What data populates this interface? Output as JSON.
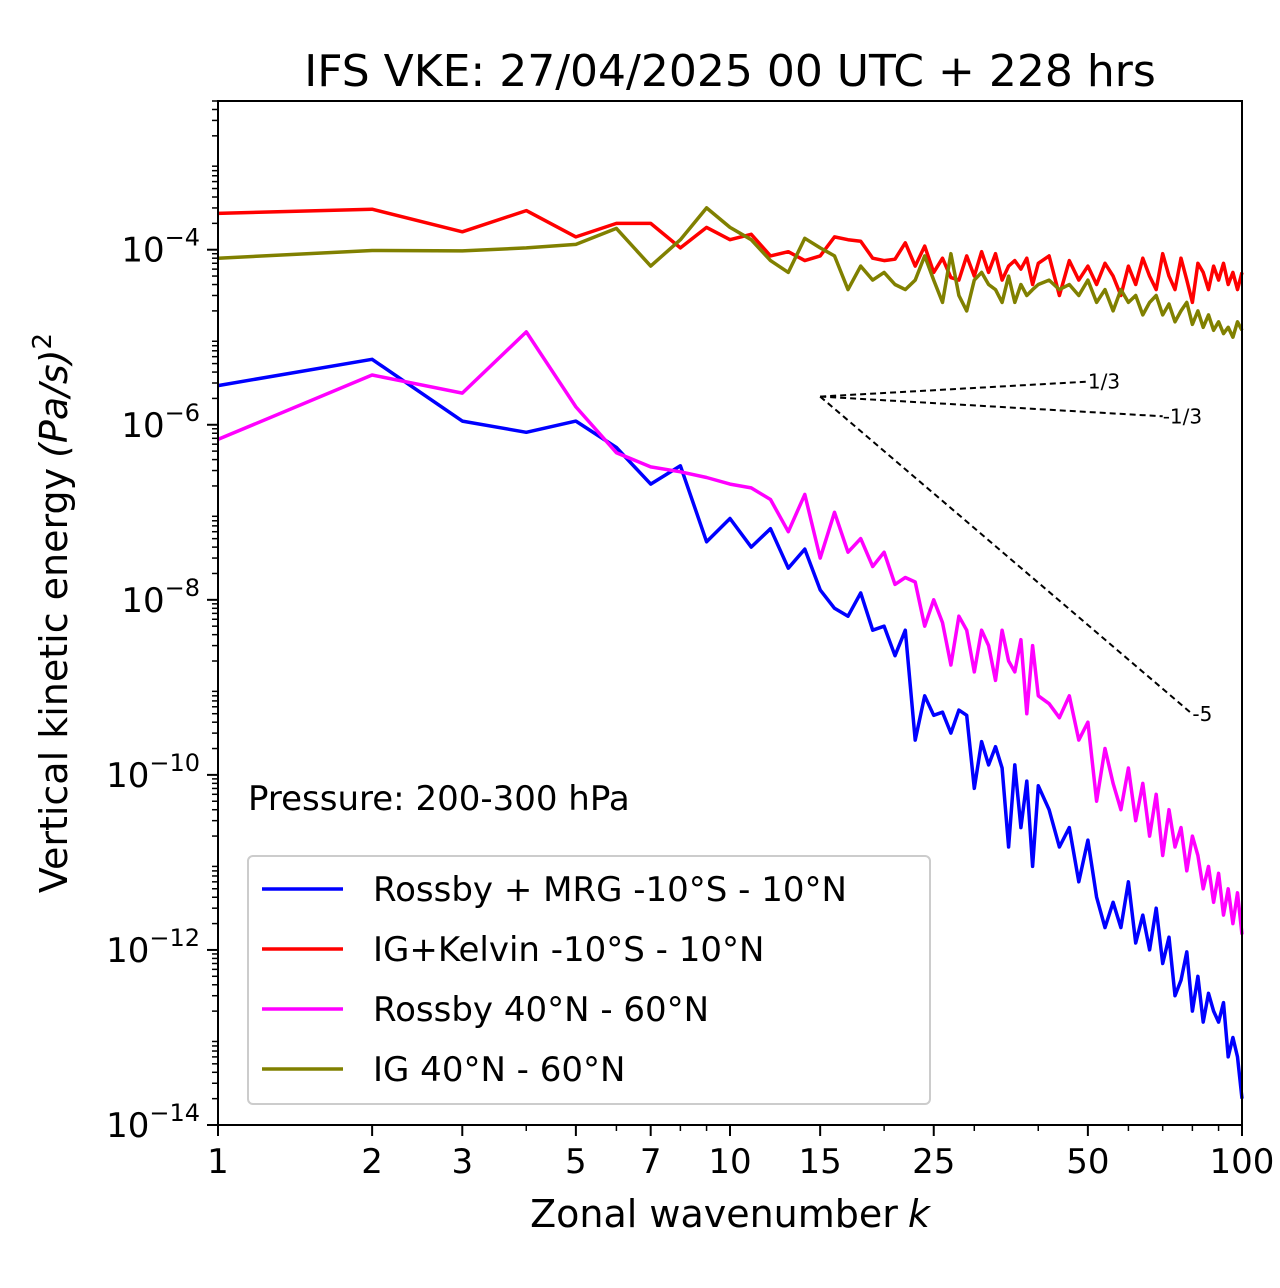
{
  "chart_data": {
    "type": "line",
    "title": "IFS VKE: 27/04/2025 00 UTC + 228 hrs",
    "xlabel": "Zonal wavenumber",
    "xlabel_symbol": "k",
    "ylabel": "Vertical kinetic energy",
    "ylabel_unit": "(Pa/s)",
    "ylabel_unit_power": "2",
    "x_scale": "log",
    "y_scale": "log",
    "xlim": [
      1,
      100
    ],
    "ylim": [
      1e-14,
      0.005
    ],
    "xticks": [
      1,
      2,
      3,
      5,
      7,
      10,
      15,
      25,
      50,
      100
    ],
    "xtick_labels": [
      "1",
      "2",
      "3",
      "5",
      "7",
      "10",
      "15",
      "25",
      "50",
      "100"
    ],
    "yticks": [
      1e-14,
      1e-12,
      1e-10,
      1e-08,
      1e-06,
      0.0001
    ],
    "ytick_labels": [
      {
        "base": "10",
        "exp": "−14"
      },
      {
        "base": "10",
        "exp": "−12"
      },
      {
        "base": "10",
        "exp": "−10"
      },
      {
        "base": "10",
        "exp": "−8"
      },
      {
        "base": "10",
        "exp": "−6"
      },
      {
        "base": "10",
        "exp": "−4"
      }
    ],
    "annotation": "Pressure: 200-300 hPa",
    "grid": false,
    "legend_position": "lower-left",
    "series": [
      {
        "name": "Rossby + MRG -10°S - 10°N",
        "color": "#0000ff",
        "x": [
          1,
          2,
          3,
          4,
          5,
          6,
          7,
          8,
          9,
          10,
          11,
          12,
          13,
          14,
          15,
          16,
          17,
          18,
          19,
          20,
          21,
          22,
          23,
          24,
          25,
          26,
          27,
          28,
          29,
          30,
          31,
          32,
          33,
          34,
          35,
          36,
          37,
          38,
          39,
          40,
          42,
          44,
          46,
          48,
          50,
          52,
          54,
          56,
          58,
          60,
          62,
          64,
          66,
          68,
          70,
          72,
          74,
          76,
          78,
          80,
          82,
          84,
          86,
          88,
          90,
          92,
          94,
          96,
          98,
          100
        ],
        "values": [
          2.8e-06,
          5.6e-06,
          1.1e-06,
          8.2e-07,
          1.1e-06,
          5.5e-07,
          2.1e-07,
          3.4e-07,
          4.6e-08,
          8.5e-08,
          4e-08,
          6.5e-08,
          2.3e-08,
          3.8e-08,
          1.3e-08,
          8e-09,
          6.5e-09,
          1.2e-08,
          4.5e-09,
          5e-09,
          2.3e-09,
          4.5e-09,
          2.5e-10,
          8e-10,
          4.8e-10,
          5.2e-10,
          3e-10,
          5.5e-10,
          4.8e-10,
          7e-11,
          2.4e-10,
          1.3e-10,
          2.1e-10,
          1.2e-10,
          1.5e-11,
          1.3e-10,
          2.5e-11,
          8.5e-11,
          9e-12,
          7.5e-11,
          4e-11,
          1.5e-11,
          2.5e-11,
          6e-12,
          1.8e-11,
          4e-12,
          1.8e-12,
          3.5e-12,
          1.8e-12,
          6e-12,
          1.2e-12,
          2.5e-12,
          1e-12,
          3e-12,
          7e-13,
          1.4e-12,
          3e-13,
          4.5e-13,
          9.5e-13,
          2e-13,
          5e-13,
          1.5e-13,
          3.2e-13,
          2e-13,
          1.5e-13,
          2.5e-13,
          6e-14,
          1e-13,
          6e-14,
          2e-14
        ]
      },
      {
        "name": "IG+Kelvin -10°S - 10°N",
        "color": "#ff0000",
        "x": [
          1,
          2,
          3,
          4,
          5,
          6,
          7,
          8,
          9,
          10,
          11,
          12,
          13,
          14,
          15,
          16,
          17,
          18,
          19,
          20,
          21,
          22,
          23,
          24,
          25,
          26,
          27,
          28,
          29,
          30,
          31,
          32,
          33,
          34,
          35,
          36,
          37,
          38,
          39,
          40,
          42,
          44,
          46,
          48,
          50,
          52,
          54,
          56,
          58,
          60,
          62,
          64,
          66,
          68,
          70,
          72,
          74,
          76,
          78,
          80,
          82,
          84,
          86,
          88,
          90,
          92,
          94,
          96,
          98,
          100
        ],
        "values": [
          0.00026,
          0.00029,
          0.00016,
          0.00028,
          0.00014,
          0.0002,
          0.0002,
          0.000105,
          0.00018,
          0.00013,
          0.00015,
          8.5e-05,
          9.5e-05,
          7.5e-05,
          8.5e-05,
          0.00014,
          0.00013,
          0.000125,
          8e-05,
          7.5e-05,
          7.8e-05,
          0.00012,
          6.5e-05,
          0.00011,
          5.5e-05,
          8e-05,
          4.8e-05,
          4.5e-05,
          8.5e-05,
          5e-05,
          9.5e-05,
          5.5e-05,
          9e-05,
          4.5e-05,
          6.5e-05,
          7.5e-05,
          6e-05,
          8e-05,
          4e-05,
          7e-05,
          8.5e-05,
          3e-05,
          7.5e-05,
          4.5e-05,
          6.5e-05,
          4e-05,
          7e-05,
          5e-05,
          3e-05,
          6.5e-05,
          4e-05,
          8e-05,
          5e-05,
          3.5e-05,
          9e-05,
          5e-05,
          3.5e-05,
          8e-05,
          4.5e-05,
          2.5e-05,
          7e-05,
          5.5e-05,
          3.5e-05,
          6.5e-05,
          4.5e-05,
          7e-05,
          4e-05,
          5.5e-05,
          3.5e-05,
          5.5e-05
        ]
      },
      {
        "name": "Rossby 40°N - 60°N",
        "color": "#ff00ff",
        "x": [
          1,
          2,
          3,
          4,
          5,
          6,
          7,
          8,
          9,
          10,
          11,
          12,
          13,
          14,
          15,
          16,
          17,
          18,
          19,
          20,
          21,
          22,
          23,
          24,
          25,
          26,
          27,
          28,
          29,
          30,
          31,
          32,
          33,
          34,
          35,
          36,
          37,
          38,
          39,
          40,
          42,
          44,
          46,
          48,
          50,
          52,
          54,
          56,
          58,
          60,
          62,
          64,
          66,
          68,
          70,
          72,
          74,
          76,
          78,
          80,
          82,
          84,
          86,
          88,
          90,
          92,
          94,
          96,
          98,
          100
        ],
        "values": [
          6.8e-07,
          3.7e-06,
          2.3e-06,
          1.15e-05,
          1.6e-06,
          4.8e-07,
          3.3e-07,
          2.9e-07,
          2.5e-07,
          2.1e-07,
          1.9e-07,
          1.4e-07,
          6e-08,
          1.6e-07,
          3e-08,
          1e-07,
          3.5e-08,
          5e-08,
          2.4e-08,
          3.5e-08,
          1.5e-08,
          1.8e-08,
          1.6e-08,
          5e-09,
          1e-08,
          5.5e-09,
          1.8e-09,
          6.5e-09,
          4.5e-09,
          1.5e-09,
          4.5e-09,
          3e-09,
          1.2e-09,
          4.5e-09,
          2e-09,
          1.5e-09,
          3.5e-09,
          5e-10,
          3e-09,
          8e-10,
          6.5e-10,
          4.5e-10,
          8e-10,
          2.5e-10,
          4e-10,
          5e-11,
          2e-10,
          8e-11,
          4e-11,
          1.2e-10,
          3e-11,
          8e-11,
          2e-11,
          6e-11,
          1.2e-11,
          4e-11,
          1.5e-11,
          2.5e-11,
          8e-12,
          2e-11,
          1.2e-11,
          5e-12,
          9e-12,
          3.5e-12,
          7.5e-12,
          2.5e-12,
          5e-12,
          2e-12,
          4.5e-12,
          1.5e-12
        ]
      },
      {
        "name": "IG 40°N - 60°N",
        "color": "#808000",
        "x": [
          1,
          2,
          3,
          4,
          5,
          6,
          7,
          8,
          9,
          10,
          11,
          12,
          13,
          14,
          15,
          16,
          17,
          18,
          19,
          20,
          21,
          22,
          23,
          24,
          25,
          26,
          27,
          28,
          29,
          30,
          31,
          32,
          33,
          34,
          35,
          36,
          37,
          38,
          39,
          40,
          42,
          44,
          46,
          48,
          50,
          52,
          54,
          56,
          58,
          60,
          62,
          64,
          66,
          68,
          70,
          72,
          74,
          76,
          78,
          80,
          82,
          84,
          86,
          88,
          90,
          92,
          94,
          96,
          98,
          100
        ],
        "values": [
          8e-05,
          9.8e-05,
          9.7e-05,
          0.000105,
          0.000115,
          0.000175,
          6.5e-05,
          0.00013,
          0.0003,
          0.00018,
          0.00013,
          7.5e-05,
          5.5e-05,
          0.000135,
          0.000105,
          8.5e-05,
          3.5e-05,
          6.5e-05,
          4.5e-05,
          5.5e-05,
          4e-05,
          3.5e-05,
          4.5e-05,
          8.5e-05,
          4.5e-05,
          2.5e-05,
          9e-05,
          3e-05,
          2e-05,
          4.5e-05,
          5.5e-05,
          4e-05,
          3.5e-05,
          2.5e-05,
          5e-05,
          2.5e-05,
          4e-05,
          3e-05,
          3.5e-05,
          4e-05,
          4.5e-05,
          3.5e-05,
          4e-05,
          3e-05,
          4.5e-05,
          2.5e-05,
          3.5e-05,
          2e-05,
          3.5e-05,
          2.5e-05,
          3e-05,
          1.8e-05,
          2.5e-05,
          3e-05,
          1.8e-05,
          2.4e-05,
          1.5e-05,
          2e-05,
          2.5e-05,
          1.4e-05,
          2e-05,
          1.3e-05,
          1.8e-05,
          1.2e-05,
          1.5e-05,
          1.1e-05,
          1.3e-05,
          1e-05,
          1.5e-05,
          1.2e-05
        ]
      }
    ],
    "reference_slopes": [
      {
        "label": "1/3",
        "x": [
          15,
          50
        ],
        "y": [
          2.1e-06,
          3.11e-06
        ]
      },
      {
        "label": "-1/3",
        "x": [
          15,
          70
        ],
        "y": [
          2.1e-06,
          1.25e-06
        ]
      },
      {
        "label": "-5",
        "x": [
          15,
          80
        ],
        "y": [
          2.1e-06,
          4.94e-10
        ]
      }
    ]
  }
}
